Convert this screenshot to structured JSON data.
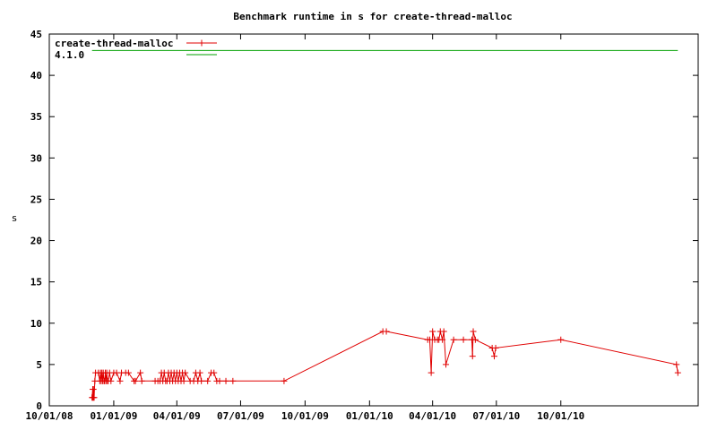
{
  "chart_data": {
    "type": "line",
    "title": "Benchmark runtime in s for create-thread-malloc",
    "ylabel": "s",
    "xlabel": "",
    "ylim": [
      0,
      45
    ],
    "xlim": [
      "2008-10-01",
      "2011-04-15"
    ],
    "y_ticks": [
      0,
      5,
      10,
      15,
      20,
      25,
      30,
      35,
      40,
      45
    ],
    "x_ticks": [
      {
        "date": "2008-10-01",
        "label": "10/01/08"
      },
      {
        "date": "2009-01-01",
        "label": "01/01/09"
      },
      {
        "date": "2009-04-01",
        "label": "04/01/09"
      },
      {
        "date": "2009-07-01",
        "label": "07/01/09"
      },
      {
        "date": "2009-10-01",
        "label": "10/01/09"
      },
      {
        "date": "2010-01-01",
        "label": "01/01/10"
      },
      {
        "date": "2010-04-01",
        "label": "04/01/10"
      },
      {
        "date": "2010-07-01",
        "label": "07/01/10"
      },
      {
        "date": "2010-10-01",
        "label": "10/01/10"
      }
    ],
    "grid": false,
    "legend_position": "top-left",
    "series": [
      {
        "name": "create-thread-malloc",
        "color": "#e00000",
        "marker": "plus",
        "points": [
          [
            "2008-12-01",
            1
          ],
          [
            "2008-12-02",
            2
          ],
          [
            "2008-12-02",
            1
          ],
          [
            "2008-12-03",
            1
          ],
          [
            "2008-12-03",
            2
          ],
          [
            "2008-12-04",
            1
          ],
          [
            "2008-12-05",
            3
          ],
          [
            "2008-12-06",
            4
          ],
          [
            "2008-12-10",
            4
          ],
          [
            "2008-12-12",
            3
          ],
          [
            "2008-12-13",
            4
          ],
          [
            "2008-12-14",
            3
          ],
          [
            "2008-12-15",
            4
          ],
          [
            "2008-12-16",
            3
          ],
          [
            "2008-12-17",
            4
          ],
          [
            "2008-12-18",
            3
          ],
          [
            "2008-12-19",
            3
          ],
          [
            "2008-12-20",
            4
          ],
          [
            "2008-12-21",
            3
          ],
          [
            "2008-12-22",
            4
          ],
          [
            "2008-12-23",
            3
          ],
          [
            "2008-12-24",
            3
          ],
          [
            "2008-12-26",
            4
          ],
          [
            "2008-12-28",
            3
          ],
          [
            "2009-01-01",
            4
          ],
          [
            "2009-01-05",
            4
          ],
          [
            "2009-01-10",
            3
          ],
          [
            "2009-01-12",
            4
          ],
          [
            "2009-01-18",
            4
          ],
          [
            "2009-01-22",
            4
          ],
          [
            "2009-01-30",
            3
          ],
          [
            "2009-02-01",
            3
          ],
          [
            "2009-02-08",
            4
          ],
          [
            "2009-02-10",
            3
          ],
          [
            "2009-03-01",
            3
          ],
          [
            "2009-03-05",
            3
          ],
          [
            "2009-03-08",
            3
          ],
          [
            "2009-03-10",
            4
          ],
          [
            "2009-03-12",
            3
          ],
          [
            "2009-03-14",
            4
          ],
          [
            "2009-03-16",
            3
          ],
          [
            "2009-03-18",
            3
          ],
          [
            "2009-03-20",
            4
          ],
          [
            "2009-03-22",
            3
          ],
          [
            "2009-03-24",
            4
          ],
          [
            "2009-03-26",
            3
          ],
          [
            "2009-03-28",
            4
          ],
          [
            "2009-03-30",
            3
          ],
          [
            "2009-04-01",
            4
          ],
          [
            "2009-04-03",
            3
          ],
          [
            "2009-04-05",
            4
          ],
          [
            "2009-04-07",
            3
          ],
          [
            "2009-04-09",
            4
          ],
          [
            "2009-04-11",
            3
          ],
          [
            "2009-04-13",
            4
          ],
          [
            "2009-04-20",
            3
          ],
          [
            "2009-04-25",
            3
          ],
          [
            "2009-04-28",
            4
          ],
          [
            "2009-05-01",
            3
          ],
          [
            "2009-05-04",
            4
          ],
          [
            "2009-05-06",
            3
          ],
          [
            "2009-05-15",
            3
          ],
          [
            "2009-05-20",
            4
          ],
          [
            "2009-05-24",
            4
          ],
          [
            "2009-05-28",
            3
          ],
          [
            "2009-06-01",
            3
          ],
          [
            "2009-06-10",
            3
          ],
          [
            "2009-06-20",
            3
          ],
          [
            "2009-09-01",
            3
          ],
          [
            "2010-01-20",
            9
          ],
          [
            "2010-01-25",
            9
          ],
          [
            "2010-03-25",
            8
          ],
          [
            "2010-03-28",
            8
          ],
          [
            "2010-03-30",
            4
          ],
          [
            "2010-04-01",
            9
          ],
          [
            "2010-04-04",
            8
          ],
          [
            "2010-04-08",
            8
          ],
          [
            "2010-04-10",
            8
          ],
          [
            "2010-04-12",
            9
          ],
          [
            "2010-04-15",
            8
          ],
          [
            "2010-04-17",
            9
          ],
          [
            "2010-04-20",
            5
          ],
          [
            "2010-05-01",
            8
          ],
          [
            "2010-05-15",
            8
          ],
          [
            "2010-05-27",
            8
          ],
          [
            "2010-05-28",
            6
          ],
          [
            "2010-05-29",
            9
          ],
          [
            "2010-06-01",
            8
          ],
          [
            "2010-06-25",
            7
          ],
          [
            "2010-06-28",
            6
          ],
          [
            "2010-06-30",
            7
          ],
          [
            "2010-10-01",
            8
          ],
          [
            "2011-03-15",
            5
          ],
          [
            "2011-03-17",
            4
          ]
        ]
      },
      {
        "name": "4.1.0",
        "color": "#00a000",
        "marker": "none",
        "points": [
          [
            "2008-12-01",
            43
          ],
          [
            "2011-03-17",
            43
          ]
        ]
      }
    ]
  }
}
